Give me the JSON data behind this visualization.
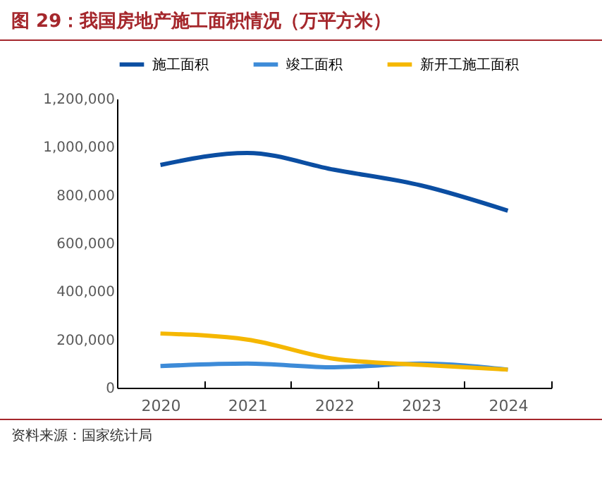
{
  "chart_data": {
    "type": "line",
    "title": "图 29：我国房地产施工面积情况（万平方米）",
    "categories": [
      "2020",
      "2021",
      "2022",
      "2023",
      "2024"
    ],
    "series": [
      {
        "name": "施工面积",
        "color": "#0b4ea2",
        "values": [
          925000,
          975000,
          905000,
          840000,
          735000
        ]
      },
      {
        "name": "竣工面积",
        "color": "#3d8bd8",
        "values": [
          90000,
          100000,
          85000,
          100000,
          75000
        ]
      },
      {
        "name": "新开工施工面积",
        "color": "#f5b700",
        "values": [
          225000,
          200000,
          120000,
          95000,
          75000
        ]
      }
    ],
    "ylim": [
      0,
      1200000
    ],
    "yticks": [
      {
        "value": 0,
        "label": "0"
      },
      {
        "value": 200000,
        "label": "200,000"
      },
      {
        "value": 400000,
        "label": "400,000"
      },
      {
        "value": 600000,
        "label": "600,000"
      },
      {
        "value": 800000,
        "label": "800,000"
      },
      {
        "value": 1000000,
        "label": "1,000,000"
      },
      {
        "value": 1200000,
        "label": "1,200,000"
      }
    ],
    "grid": false,
    "legend": "top",
    "marker": "none",
    "line_style": "solid",
    "annotations": [
      "资料来源：国家统计局"
    ]
  }
}
